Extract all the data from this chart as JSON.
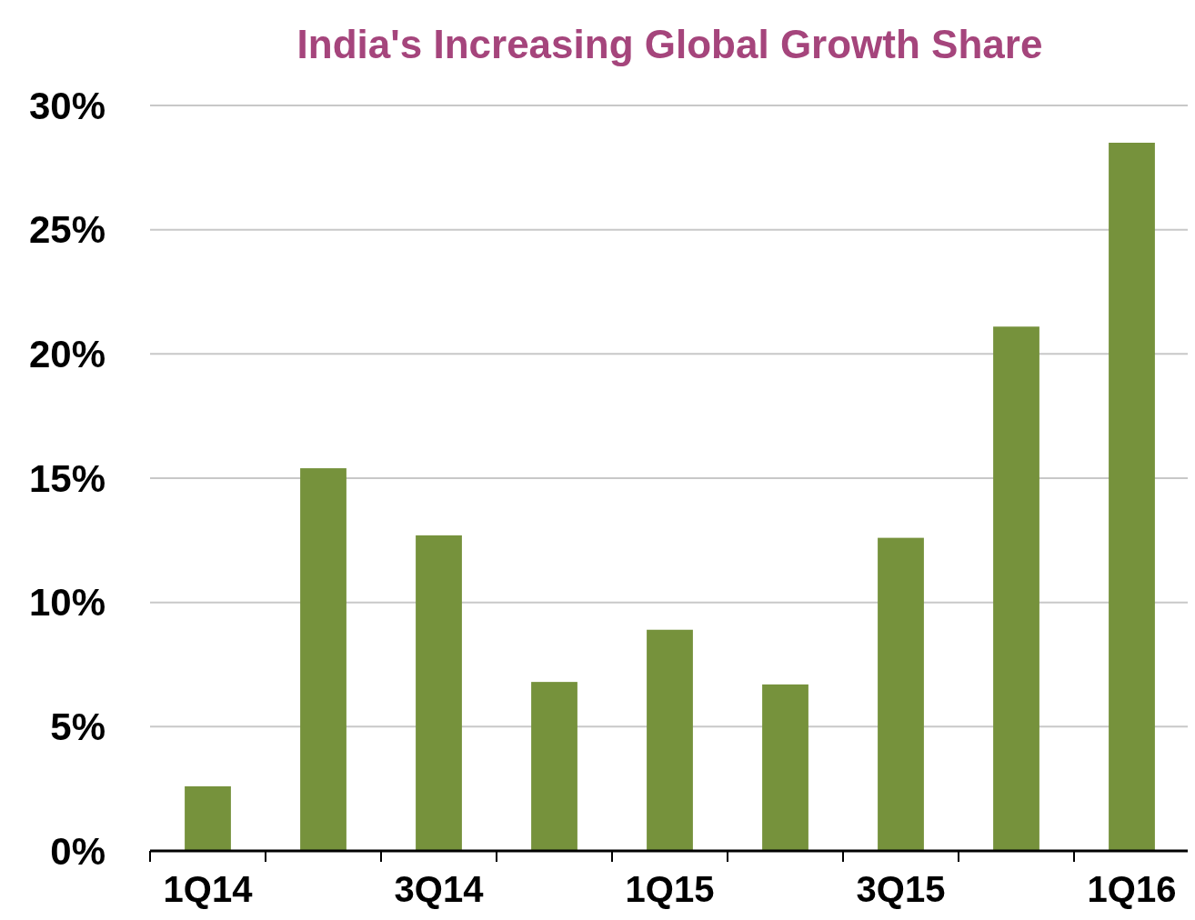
{
  "chart_data": {
    "type": "bar",
    "title": "India's Increasing Global Growth Share",
    "categories": [
      "1Q14",
      null,
      "3Q14",
      null,
      "1Q15",
      null,
      "3Q15",
      null,
      "1Q16"
    ],
    "values": [
      2.6,
      15.4,
      12.7,
      6.8,
      8.9,
      6.7,
      12.6,
      21.1,
      28.5
    ],
    "color": "#76923c",
    "ylim": [
      0,
      30
    ],
    "yticks": [
      {
        "value": 0,
        "label": "0%"
      },
      {
        "value": 5,
        "label": "5%"
      },
      {
        "value": 10,
        "label": "10%"
      },
      {
        "value": 15,
        "label": "15%"
      },
      {
        "value": 20,
        "label": "20%"
      },
      {
        "value": 25,
        "label": "25%"
      },
      {
        "value": 30,
        "label": "30%"
      }
    ],
    "grid": "y"
  }
}
